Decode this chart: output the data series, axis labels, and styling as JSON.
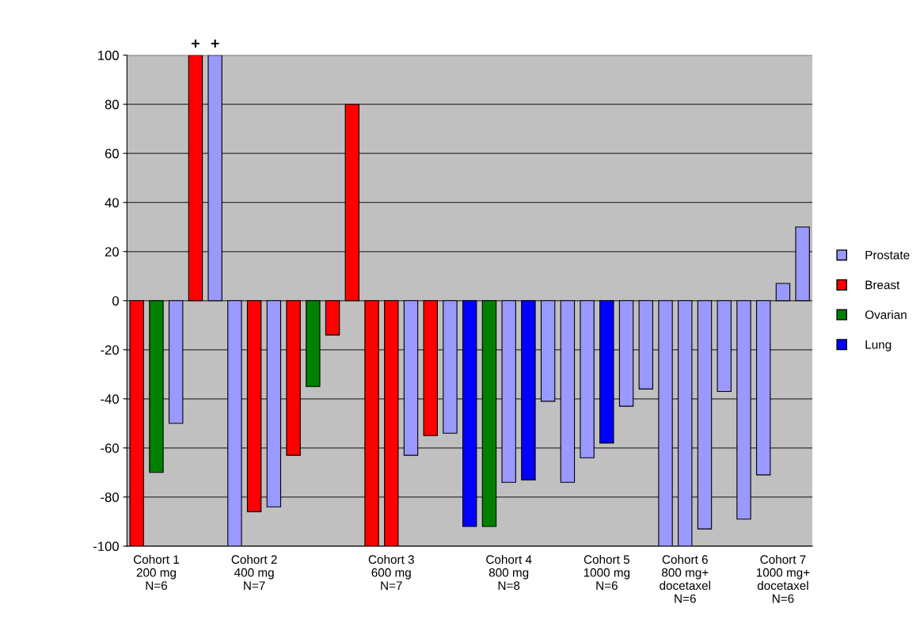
{
  "chart_data": {
    "type": "bar",
    "categories": [
      null,
      "Cohort 1\n200 mg\nN=6",
      null,
      null,
      null,
      null,
      "Cohort 2\n400 mg\nN=7",
      null,
      null,
      null,
      null,
      null,
      null,
      "Cohort 3\n600 mg\nN=7",
      null,
      null,
      null,
      null,
      null,
      "Cohort 4\n800 mg\nN=8",
      null,
      null,
      null,
      null,
      "Cohort 5\n1000 mg\nN=6",
      null,
      null,
      null,
      "Cohort 6\n800 mg+\ndocetaxel\nN=6",
      null,
      null,
      null,
      null,
      "Cohort 7\n1000 mg+\ndocetaxel\nN=6",
      null
    ],
    "series": [
      {
        "name": "Prostate",
        "color": "#9999ff",
        "values": [
          null,
          null,
          -50,
          null,
          100,
          -100,
          null,
          -84,
          null,
          null,
          null,
          null,
          null,
          null,
          -63,
          null,
          -54,
          null,
          null,
          -74,
          null,
          -41,
          -74,
          -64,
          null,
          -43,
          -36,
          -100,
          -100,
          -93,
          -37,
          -89,
          -71,
          7,
          30
        ],
        "value_labels": [
          null,
          null,
          null,
          null,
          "+",
          null,
          null,
          null,
          null,
          null,
          null,
          null,
          null,
          null,
          null,
          null,
          null,
          null,
          null,
          null,
          null,
          null,
          null,
          null,
          null,
          null,
          null,
          null,
          null,
          null,
          null,
          null,
          null,
          null,
          null
        ]
      },
      {
        "name": "Breast",
        "color": "#ff0000",
        "values": [
          -100,
          null,
          null,
          100,
          null,
          null,
          -86,
          null,
          -63,
          null,
          -14,
          80,
          -100,
          -100,
          null,
          -55,
          null,
          null,
          null,
          null,
          null,
          null,
          null,
          null,
          null,
          null,
          null,
          null,
          null,
          null,
          null,
          null,
          null,
          null,
          null
        ],
        "value_labels": [
          null,
          null,
          null,
          "+",
          null,
          null,
          null,
          null,
          null,
          null,
          null,
          null,
          null,
          null,
          null,
          null,
          null,
          null,
          null,
          null,
          null,
          null,
          null,
          null,
          null,
          null,
          null,
          null,
          null,
          null,
          null,
          null,
          null,
          null,
          null
        ]
      },
      {
        "name": "Ovarian",
        "color": "#008000",
        "values": [
          null,
          -70,
          null,
          null,
          null,
          null,
          null,
          null,
          null,
          -35,
          null,
          null,
          null,
          null,
          null,
          null,
          null,
          null,
          -92,
          null,
          null,
          null,
          null,
          null,
          null,
          null,
          null,
          null,
          null,
          null,
          null,
          null,
          null,
          null,
          null
        ]
      },
      {
        "name": "Lung",
        "color": "#0000ff",
        "values": [
          null,
          null,
          null,
          null,
          null,
          null,
          null,
          null,
          null,
          null,
          null,
          null,
          null,
          null,
          null,
          null,
          null,
          -92,
          null,
          null,
          -73,
          null,
          null,
          null,
          -58,
          null,
          null,
          null,
          null,
          null,
          null,
          null,
          null,
          null,
          null
        ]
      }
    ],
    "ylim": [
      -100,
      100
    ],
    "yticks": [
      -100,
      -80,
      -60,
      -40,
      -20,
      0,
      20,
      40,
      60,
      80,
      100
    ],
    "grid": "y",
    "legend": "right"
  }
}
